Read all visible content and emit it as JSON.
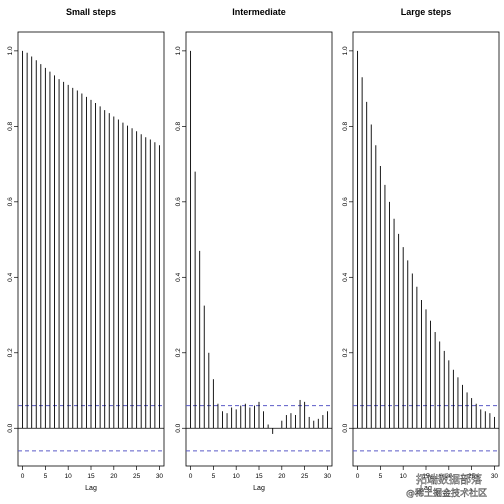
{
  "chart_data": [
    {
      "type": "bar",
      "title": "Small steps",
      "xlabel": "Lag",
      "ylabel": "",
      "x": [
        0,
        1,
        2,
        3,
        4,
        5,
        6,
        7,
        8,
        9,
        10,
        11,
        12,
        13,
        14,
        15,
        16,
        17,
        18,
        19,
        20,
        21,
        22,
        23,
        24,
        25,
        26,
        27,
        28,
        29,
        30
      ],
      "values": [
        1.0,
        0.995,
        0.985,
        0.975,
        0.965,
        0.955,
        0.945,
        0.935,
        0.925,
        0.918,
        0.91,
        0.902,
        0.895,
        0.887,
        0.878,
        0.87,
        0.862,
        0.853,
        0.843,
        0.835,
        0.826,
        0.818,
        0.81,
        0.802,
        0.795,
        0.787,
        0.779,
        0.771,
        0.765,
        0.758,
        0.75
      ],
      "xticks": [
        0,
        5,
        10,
        15,
        20,
        25,
        30
      ],
      "yticks": [
        0.0,
        0.2,
        0.4,
        0.6,
        0.8,
        1.0
      ],
      "ylim": [
        -0.1,
        1.05
      ],
      "xlim": [
        -1,
        31
      ],
      "conf_bound": 0.06,
      "grid": false
    },
    {
      "type": "bar",
      "title": "Intermediate",
      "xlabel": "Lag",
      "ylabel": "",
      "x": [
        0,
        1,
        2,
        3,
        4,
        5,
        6,
        7,
        8,
        9,
        10,
        11,
        12,
        13,
        14,
        15,
        16,
        17,
        18,
        19,
        20,
        21,
        22,
        23,
        24,
        25,
        26,
        27,
        28,
        29,
        30
      ],
      "values": [
        1.0,
        0.68,
        0.47,
        0.325,
        0.2,
        0.13,
        0.065,
        0.045,
        0.04,
        0.055,
        0.05,
        0.06,
        0.065,
        0.055,
        0.06,
        0.07,
        0.045,
        0.01,
        -0.015,
        0.0,
        0.02,
        0.035,
        0.04,
        0.035,
        0.075,
        0.07,
        0.03,
        0.02,
        0.025,
        0.035,
        0.045
      ],
      "xticks": [
        0,
        5,
        10,
        15,
        20,
        25,
        30
      ],
      "yticks": [
        0.0,
        0.2,
        0.4,
        0.6,
        0.8,
        1.0
      ],
      "ylim": [
        -0.1,
        1.05
      ],
      "xlim": [
        -1,
        31
      ],
      "conf_bound": 0.06,
      "grid": false
    },
    {
      "type": "bar",
      "title": "Large steps",
      "xlabel": "Lag",
      "ylabel": "",
      "x": [
        0,
        1,
        2,
        3,
        4,
        5,
        6,
        7,
        8,
        9,
        10,
        11,
        12,
        13,
        14,
        15,
        16,
        17,
        18,
        19,
        20,
        21,
        22,
        23,
        24,
        25,
        26,
        27,
        28,
        29,
        30
      ],
      "values": [
        1.0,
        0.93,
        0.865,
        0.805,
        0.75,
        0.695,
        0.645,
        0.6,
        0.555,
        0.515,
        0.48,
        0.445,
        0.41,
        0.375,
        0.34,
        0.315,
        0.285,
        0.255,
        0.23,
        0.205,
        0.18,
        0.155,
        0.135,
        0.115,
        0.095,
        0.08,
        0.065,
        0.05,
        0.045,
        0.04,
        0.03
      ],
      "xticks": [
        0,
        5,
        10,
        15,
        20,
        25,
        30
      ],
      "yticks": [
        0.0,
        0.2,
        0.4,
        0.6,
        0.8,
        1.0
      ],
      "ylim": [
        -0.1,
        1.05
      ],
      "xlim": [
        -1,
        31
      ],
      "conf_bound": 0.06,
      "grid": false
    }
  ],
  "colors": {
    "bars": "#000000",
    "zero_line": "#000000",
    "conf_line": "#5b5bc8",
    "frame": "#000000",
    "background": "#ffffff"
  },
  "watermark": {
    "line1": "拓端数据部落",
    "line2": "@稀土掘金技术社区"
  }
}
